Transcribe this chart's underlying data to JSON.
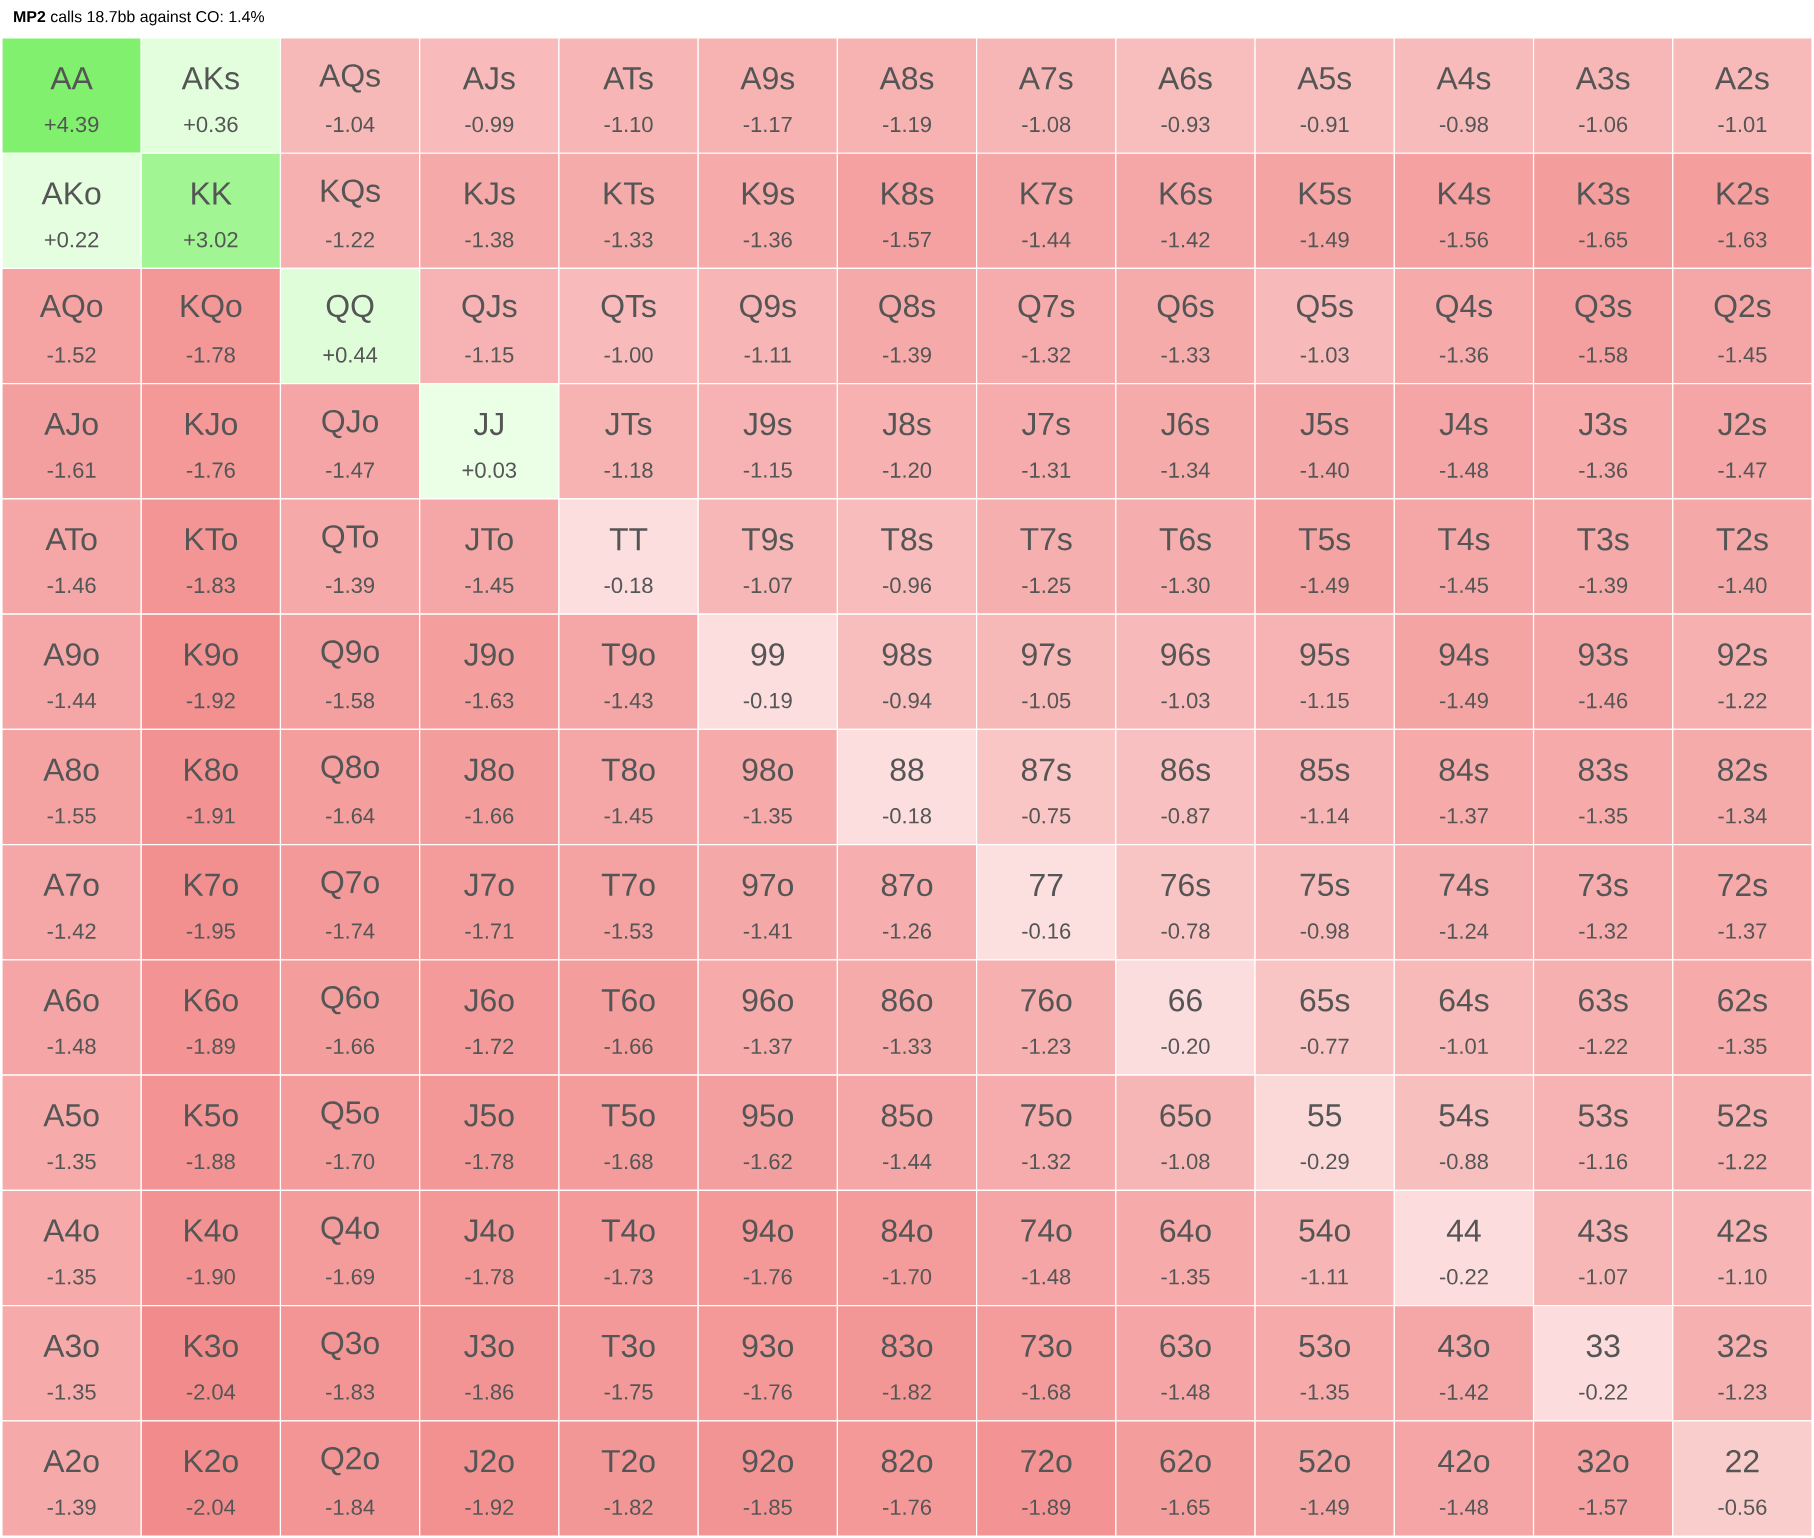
{
  "chart_data": {
    "type": "heatmap",
    "title": "**MP2** calls 18.7bb against CO: 1.4%",
    "categories": [
      null,
      null,
      null,
      null,
      null,
      null,
      null,
      null,
      null,
      null,
      null,
      null,
      null
    ],
    "y_categories": [
      null,
      null,
      null,
      null,
      null,
      null,
      null,
      null,
      null,
      null,
      null,
      null,
      null
    ],
    "cells": [
      [
        4.39,
        0.36,
        -1.04,
        -0.99,
        -1.1,
        -1.17,
        -1.19,
        -1.08,
        -0.93,
        -0.91,
        -0.98,
        -1.06,
        -1.01
      ],
      [
        0.22,
        3.02,
        -1.22,
        -1.38,
        -1.33,
        -1.36,
        -1.57,
        -1.44,
        -1.42,
        -1.49,
        -1.56,
        -1.65,
        -1.63
      ],
      [
        -1.52,
        -1.78,
        0.44,
        -1.15,
        -1.0,
        -1.11,
        -1.39,
        -1.32,
        -1.33,
        -1.03,
        -1.36,
        -1.58,
        -1.45
      ],
      [
        -1.61,
        -1.76,
        -1.47,
        0.03,
        -1.18,
        -1.15,
        -1.2,
        -1.31,
        -1.34,
        -1.4,
        -1.48,
        -1.36,
        -1.47
      ],
      [
        -1.46,
        -1.83,
        -1.39,
        -1.45,
        -0.18,
        -1.07,
        -0.96,
        -1.25,
        -1.3,
        -1.49,
        -1.45,
        -1.39,
        -1.4
      ],
      [
        -1.44,
        -1.92,
        -1.58,
        -1.63,
        -1.43,
        -0.19,
        -0.94,
        -1.05,
        -1.03,
        -1.15,
        -1.49,
        -1.46,
        -1.22
      ],
      [
        -1.55,
        -1.91,
        -1.64,
        -1.66,
        -1.45,
        -1.35,
        -0.18,
        -0.75,
        -0.87,
        -1.14,
        -1.37,
        -1.35,
        -1.34
      ],
      [
        -1.42,
        -1.95,
        -1.74,
        -1.71,
        -1.53,
        -1.41,
        -1.26,
        -0.16,
        -0.78,
        -0.98,
        -1.24,
        -1.32,
        -1.37
      ],
      [
        -1.48,
        -1.89,
        -1.66,
        -1.72,
        -1.66,
        -1.37,
        -1.33,
        -1.23,
        -0.2,
        -0.77,
        -1.01,
        -1.22,
        -1.35
      ],
      [
        -1.35,
        -1.88,
        -1.7,
        -1.78,
        -1.68,
        -1.62,
        -1.44,
        -1.32,
        -1.08,
        -0.29,
        -0.88,
        -1.16,
        -1.22
      ],
      [
        -1.35,
        -1.9,
        -1.69,
        -1.78,
        -1.73,
        -1.76,
        -1.7,
        -1.48,
        -1.35,
        -1.11,
        -0.22,
        -1.07,
        -1.1
      ],
      [
        -1.35,
        -2.04,
        -1.83,
        -1.86,
        -1.75,
        -1.76,
        -1.82,
        -1.68,
        -1.48,
        -1.35,
        -1.42,
        -0.22,
        -1.23
      ],
      [
        -1.39,
        -2.04,
        -1.84,
        -1.92,
        -1.82,
        -1.85,
        -1.76,
        -1.89,
        -1.65,
        -1.49,
        -1.48,
        -1.57,
        -0.56
      ]
    ],
    "cell_labels": [
      [
        "+4.39",
        "+0.36",
        "-1.04",
        "-0.99",
        "-1.10",
        "-1.17",
        "-1.19",
        "-1.08",
        "-0.93",
        "-0.91",
        "-0.98",
        "-1.06",
        "-1.01"
      ],
      [
        "+0.22",
        "+3.02",
        "-1.22",
        "-1.38",
        "-1.33",
        "-1.36",
        "-1.57",
        "-1.44",
        "-1.42",
        "-1.49",
        "-1.56",
        "-1.65",
        "-1.63"
      ],
      [
        "-1.52",
        "-1.78",
        "+0.44",
        "-1.15",
        "-1.00",
        "-1.11",
        "-1.39",
        "-1.32",
        "-1.33",
        "-1.03",
        "-1.36",
        "-1.58",
        "-1.45"
      ],
      [
        "-1.61",
        "-1.76",
        "-1.47",
        "+0.03",
        "-1.18",
        "-1.15",
        "-1.20",
        "-1.31",
        "-1.34",
        "-1.40",
        "-1.48",
        "-1.36",
        "-1.47"
      ],
      [
        "-1.46",
        "-1.83",
        "-1.39",
        "-1.45",
        "-0.18",
        "-1.07",
        "-0.96",
        "-1.25",
        "-1.30",
        "-1.49",
        "-1.45",
        "-1.39",
        "-1.40"
      ],
      [
        "-1.44",
        "-1.92",
        "-1.58",
        "-1.63",
        "-1.43",
        "-0.19",
        "-0.94",
        "-1.05",
        "-1.03",
        "-1.15",
        "-1.49",
        "-1.46",
        "-1.22"
      ],
      [
        "-1.55",
        "-1.91",
        "-1.64",
        "-1.66",
        "-1.45",
        "-1.35",
        "-0.18",
        "-0.75",
        "-0.87",
        "-1.14",
        "-1.37",
        "-1.35",
        "-1.34"
      ],
      [
        "-1.42",
        "-1.95",
        "-1.74",
        "-1.71",
        "-1.53",
        "-1.41",
        "-1.26",
        "-0.16",
        "-0.78",
        "-0.98",
        "-1.24",
        "-1.32",
        "-1.37"
      ],
      [
        "-1.48",
        "-1.89",
        "-1.66",
        "-1.72",
        "-1.66",
        "-1.37",
        "-1.33",
        "-1.23",
        "-0.20",
        "-0.77",
        "-1.01",
        "-1.22",
        "-1.35"
      ],
      [
        "-1.35",
        "-1.88",
        "-1.70",
        "-1.78",
        "-1.68",
        "-1.62",
        "-1.44",
        "-1.32",
        "-1.08",
        "-0.29",
        "-0.88",
        "-1.16",
        "-1.22"
      ],
      [
        "-1.35",
        "-1.90",
        "-1.69",
        "-1.78",
        "-1.73",
        "-1.76",
        "-1.70",
        "-1.48",
        "-1.35",
        "-1.11",
        "-0.22",
        "-1.07",
        "-1.10"
      ],
      [
        "-1.35",
        "-2.04",
        "-1.83",
        "-1.86",
        "-1.75",
        "-1.76",
        "-1.82",
        "-1.68",
        "-1.48",
        "-1.35",
        "-1.42",
        "-0.22",
        "-1.23"
      ],
      [
        "-1.39",
        "-2.04",
        "-1.84",
        "-1.92",
        "-1.82",
        "-1.85",
        "-1.76",
        "-1.89",
        "-1.65",
        "-1.49",
        "-1.48",
        "-1.57",
        "-0.56"
      ]
    ],
    "annotations": [
      "AA",
      "AKs",
      "AQs",
      "AJs",
      "ATs",
      "A9s",
      "A8s",
      "A7s",
      "A6s",
      "A5s",
      "A4s",
      "A3s",
      "A2s",
      "AKo",
      "KK",
      "KQs",
      "KJs",
      "KTs",
      "K9s",
      "K8s",
      "K7s",
      "K6s",
      "K5s",
      "K4s",
      "K3s",
      "K2s",
      "AQo",
      "KQo",
      "QQ",
      "QJs",
      "QTs",
      "Q9s",
      "Q8s",
      "Q7s",
      "Q6s",
      "Q5s",
      "Q4s",
      "Q3s",
      "Q2s",
      "AJo",
      "KJo",
      "QJo",
      "JJ",
      "JTs",
      "J9s",
      "J8s",
      "J7s",
      "J6s",
      "J5s",
      "J4s",
      "J3s",
      "J2s",
      "ATo",
      "KTo",
      "QTo",
      "JTo",
      "TT",
      "T9s",
      "T8s",
      "T7s",
      "T6s",
      "T5s",
      "T4s",
      "T3s",
      "T2s",
      "A9o",
      "K9o",
      "Q9o",
      "J9o",
      "T9o",
      "99",
      "98s",
      "97s",
      "96s",
      "95s",
      "94s",
      "93s",
      "92s",
      "A8o",
      "K8o",
      "Q8o",
      "J8o",
      "T8o",
      "98o",
      "88",
      "87s",
      "86s",
      "85s",
      "84s",
      "83s",
      "82s",
      "A7o",
      "K7o",
      "Q7o",
      "J7o",
      "T7o",
      "97o",
      "87o",
      "77",
      "76s",
      "75s",
      "74s",
      "73s",
      "72s",
      "A6o",
      "K6o",
      "Q6o",
      "J6o",
      "T6o",
      "96o",
      "86o",
      "76o",
      "66",
      "65s",
      "64s",
      "63s",
      "62s",
      "A5o",
      "K5o",
      "Q5o",
      "J5o",
      "T5o",
      "95o",
      "85o",
      "75o",
      "65o",
      "55",
      "54s",
      "53s",
      "52s",
      "A4o",
      "K4o",
      "Q4o",
      "J4o",
      "T4o",
      "94o",
      "84o",
      "74o",
      "64o",
      "54o",
      "44",
      "43s",
      "42s",
      "A3o",
      "K3o",
      "Q3o",
      "J3o",
      "T3o",
      "93o",
      "83o",
      "73o",
      "63o",
      "53o",
      "43o",
      "33",
      "32s",
      "A2o",
      "K2o",
      "Q2o",
      "J2o",
      "T2o",
      "92o",
      "82o",
      "72o",
      "62o",
      "52o",
      "42o",
      "32o",
      "22"
    ]
  }
}
